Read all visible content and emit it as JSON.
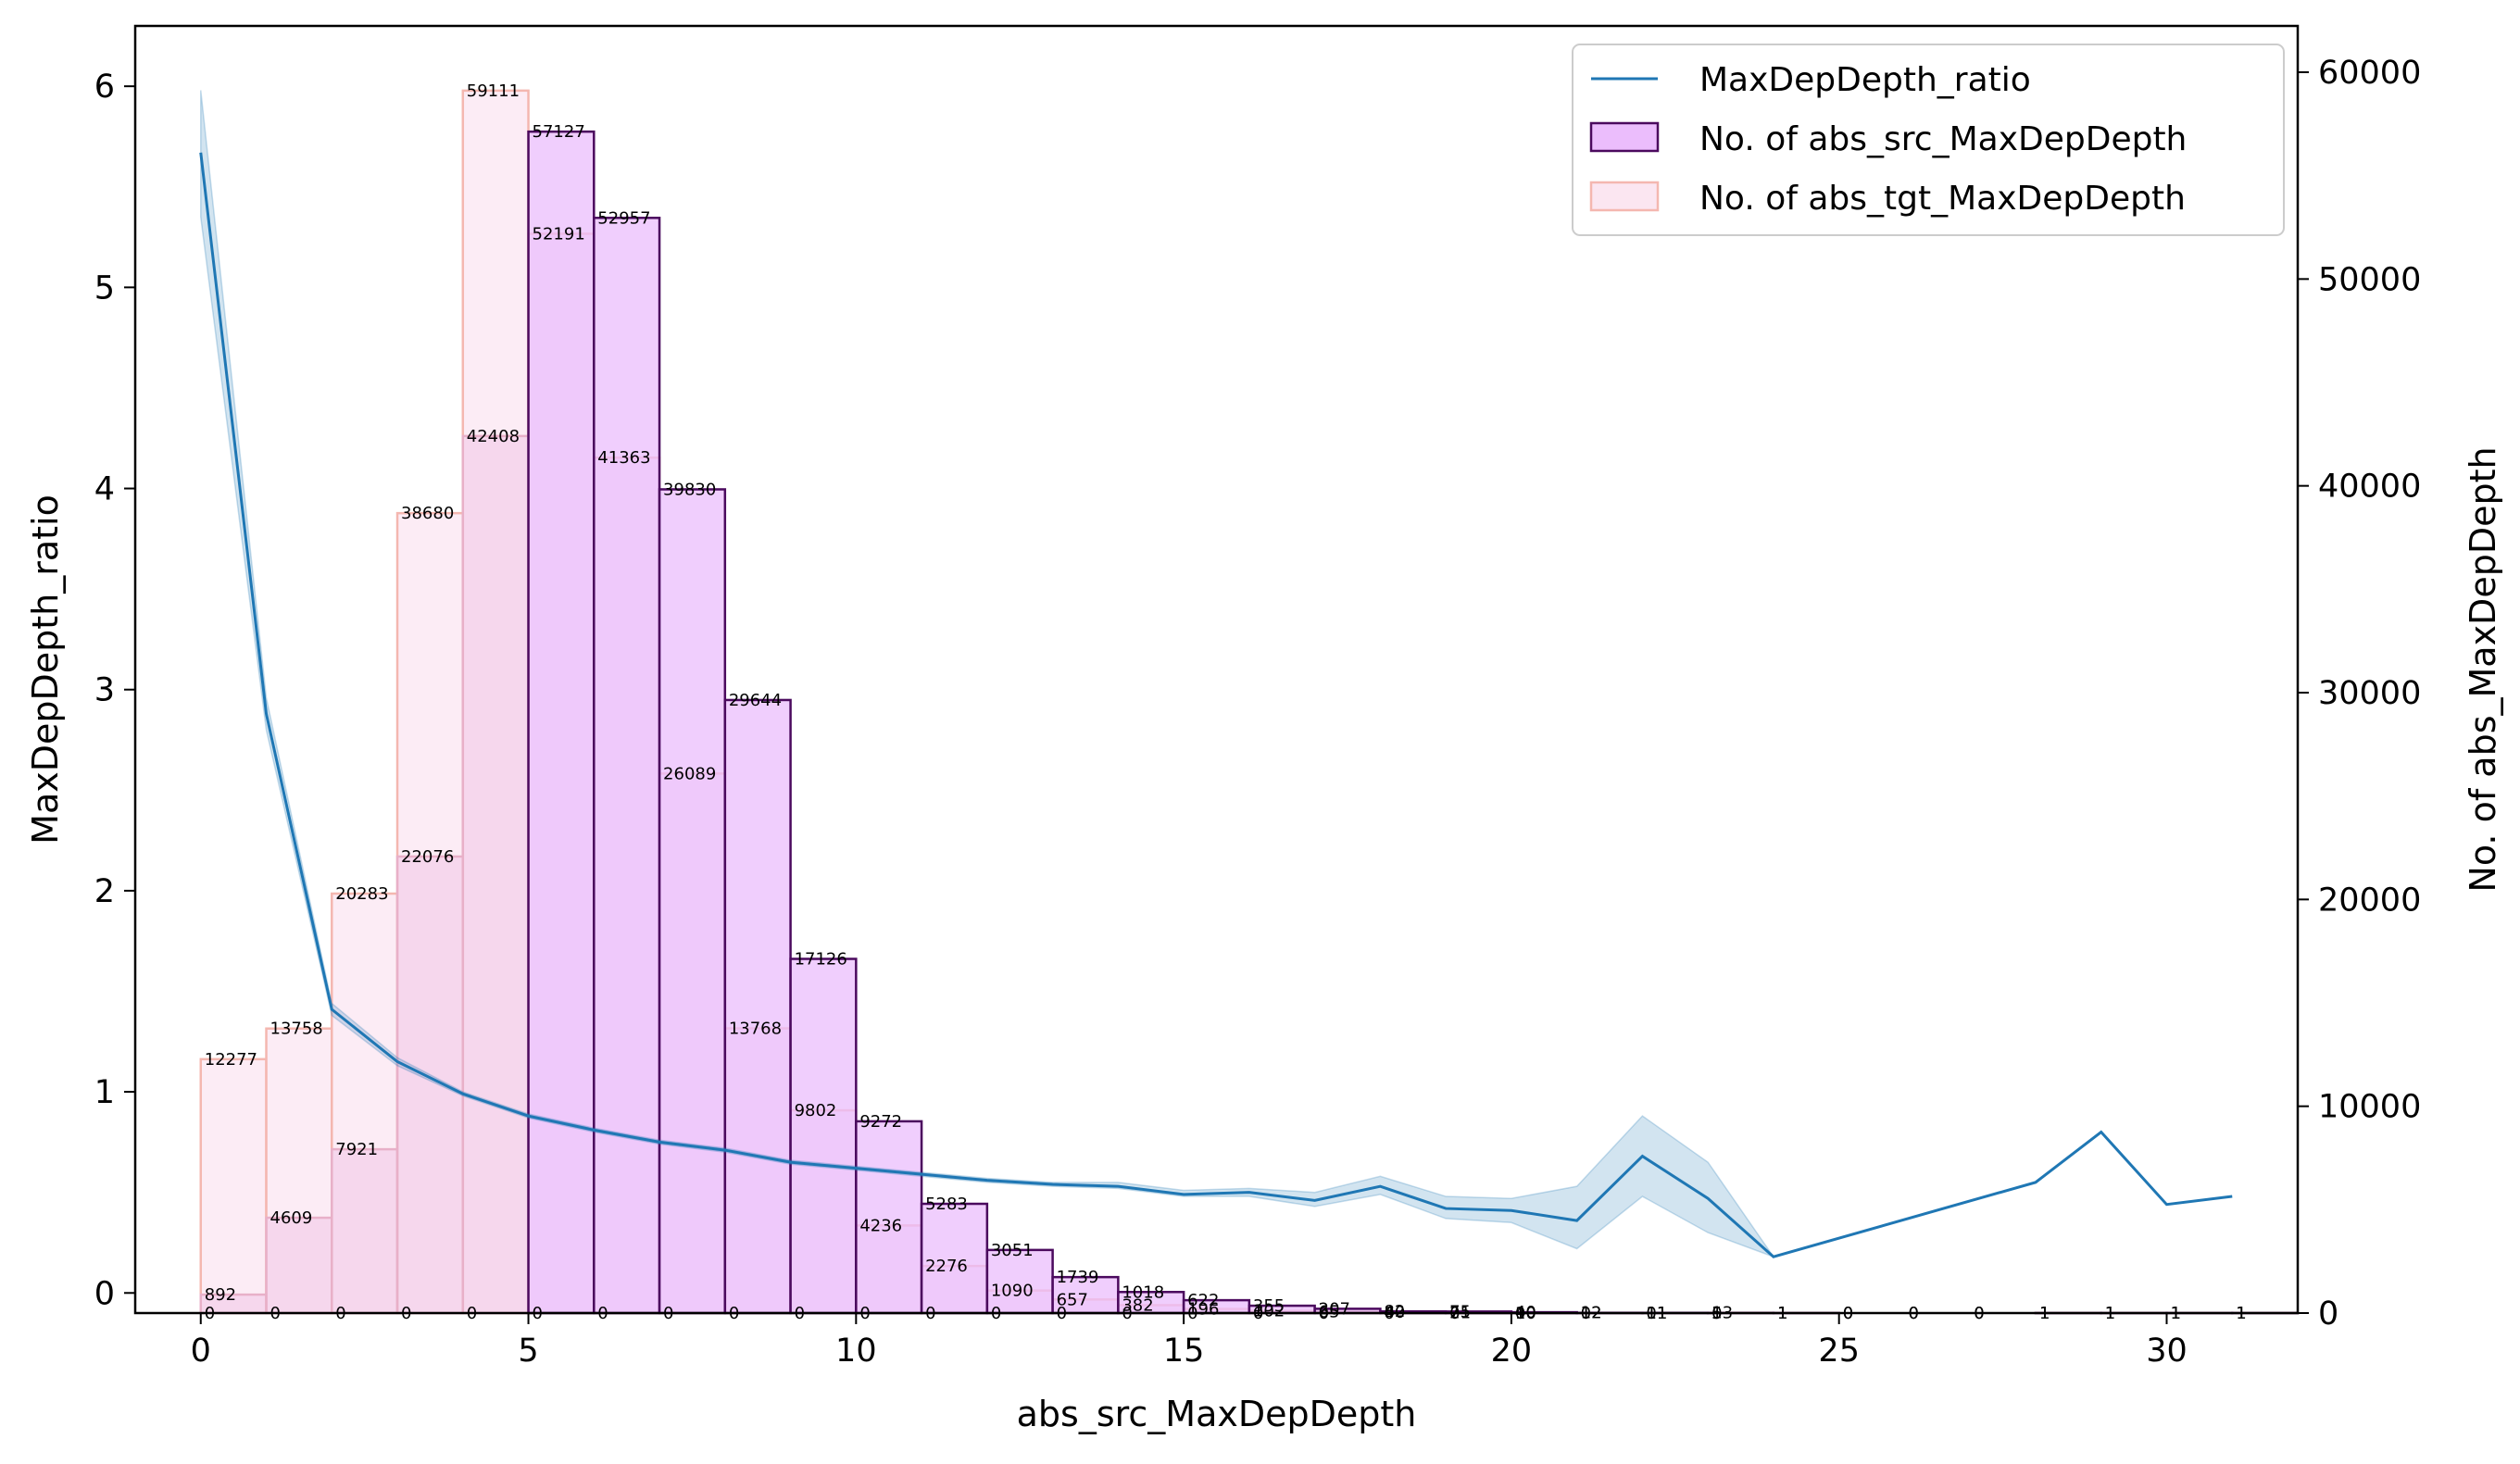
{
  "chart_data": {
    "type": "bar",
    "xlabel": "abs_src_MaxDepDepth",
    "ylabel": "MaxDepDepth_ratio",
    "ylabel_right": "No. of abs_MaxDepDepth",
    "xlim": [
      -1,
      32
    ],
    "ylim": [
      -0.1,
      6.3
    ],
    "ylim_right": [
      0,
      60000
    ],
    "x_ticks": [
      0,
      5,
      10,
      15,
      20,
      25,
      30
    ],
    "y_ticks": [
      0,
      1,
      2,
      3,
      4,
      5,
      6
    ],
    "y_ticks_right": [
      0,
      10000,
      20000,
      30000,
      40000,
      50000,
      60000
    ],
    "grid": false,
    "legend_position": "top-right",
    "colors": {
      "line": "#1f77b4",
      "band": "#1f77b4",
      "src_fill": "#ebbdfc",
      "src_edge": "#4b0a5e",
      "tgt_fill": "#fbe6f1",
      "tgt_edge": "#f4b7b0"
    },
    "series": [
      {
        "name": "MaxDepDepth_ratio",
        "kind": "line",
        "x": [
          0,
          1,
          2,
          3,
          4,
          5,
          6,
          7,
          8,
          9,
          10,
          11,
          12,
          13,
          14,
          15,
          16,
          17,
          18,
          19,
          20,
          21,
          22,
          23,
          24,
          28,
          29,
          30,
          31
        ],
        "values": [
          5.67,
          2.88,
          1.41,
          1.15,
          0.99,
          0.88,
          0.81,
          0.75,
          0.71,
          0.65,
          0.62,
          0.59,
          0.56,
          0.54,
          0.53,
          0.49,
          0.5,
          0.46,
          0.53,
          0.42,
          0.41,
          0.36,
          0.68,
          0.47,
          0.18,
          0.55,
          0.8,
          0.44,
          0.48
        ],
        "lower": [
          5.35,
          2.8,
          1.38,
          1.13,
          0.98,
          0.87,
          0.8,
          0.74,
          0.7,
          0.64,
          0.61,
          0.58,
          0.55,
          0.53,
          0.52,
          0.48,
          0.48,
          0.43,
          0.49,
          0.37,
          0.35,
          0.22,
          0.48,
          0.3,
          0.18,
          0.55,
          0.8,
          0.44,
          0.48
        ],
        "upper": [
          5.98,
          2.96,
          1.44,
          1.17,
          1.0,
          0.89,
          0.82,
          0.76,
          0.72,
          0.66,
          0.63,
          0.6,
          0.57,
          0.55,
          0.55,
          0.51,
          0.52,
          0.5,
          0.58,
          0.48,
          0.47,
          0.53,
          0.88,
          0.65,
          0.18,
          0.55,
          0.8,
          0.44,
          0.48
        ]
      },
      {
        "name": "No. of abs_src_MaxDepDepth",
        "kind": "step-bar",
        "x": [
          0,
          1,
          2,
          3,
          4,
          5,
          6,
          7,
          8,
          9,
          10,
          11,
          12,
          13,
          14,
          15,
          16,
          17,
          18,
          19,
          20,
          21,
          22,
          23,
          24,
          25,
          26,
          27,
          28,
          29,
          30,
          31
        ],
        "values": [
          0,
          0,
          0,
          0,
          0,
          57127,
          52957,
          39830,
          29644,
          17126,
          9272,
          5283,
          3051,
          1739,
          1018,
          622,
          355,
          207,
          82,
          75,
          40,
          12,
          11,
          5,
          1,
          0,
          0,
          0,
          1,
          1,
          1,
          1
        ]
      },
      {
        "name": "No. of abs_tgt_MaxDepDepth",
        "kind": "step-bar",
        "x": [
          0,
          1,
          2,
          3,
          4,
          5,
          6,
          7,
          8,
          9,
          10,
          11,
          12,
          13,
          14,
          15,
          16,
          17,
          18,
          19,
          20,
          21,
          22,
          23,
          24,
          25,
          26,
          27,
          28,
          29,
          30,
          31
        ],
        "values": [
          12277,
          13758,
          20283,
          38680,
          59111,
          52191,
          41363,
          26089,
          13768,
          9802,
          4236,
          2276,
          1090,
          657,
          382,
          196,
          102,
          65,
          40,
          21,
          10,
          12,
          11,
          13,
          1,
          0,
          0,
          0,
          1,
          1,
          1,
          1
        ]
      },
      {
        "name": "",
        "kind": "step-bar-extra",
        "x": [
          0,
          1,
          2,
          3,
          4,
          5,
          6,
          7,
          8,
          9,
          10,
          11,
          12,
          13,
          14,
          15,
          16,
          17,
          18,
          19,
          20,
          21,
          22,
          23
        ],
        "values": [
          892,
          4609,
          7921,
          22076,
          42408,
          0,
          0,
          0,
          0,
          0,
          0,
          0,
          0,
          0,
          0,
          0,
          0,
          0,
          0,
          0,
          0,
          0,
          0,
          0
        ]
      }
    ]
  }
}
